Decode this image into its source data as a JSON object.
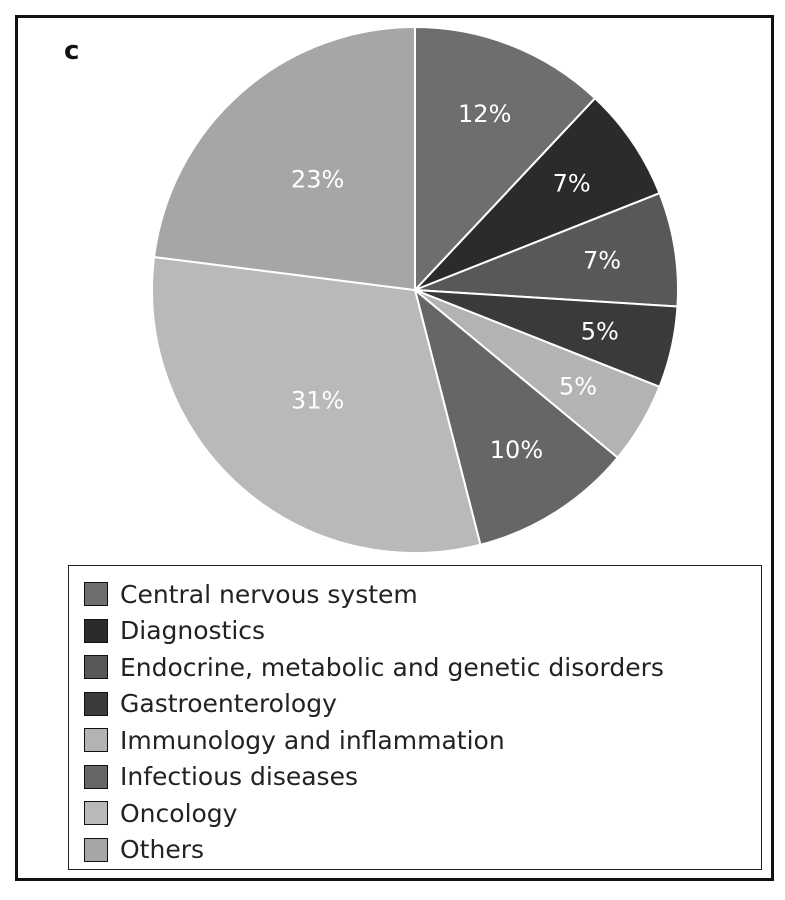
{
  "panel_label": "c",
  "chart_data": {
    "type": "pie",
    "title": "",
    "legend_position": "bottom",
    "slices": [
      {
        "name": "Central nervous system",
        "value": 12,
        "label": "12%",
        "color": "#6e6e6e",
        "label_color": "#ffffff"
      },
      {
        "name": "Diagnostics",
        "value": 7,
        "label": "7%",
        "color": "#2b2b2b",
        "label_color": "#ffffff"
      },
      {
        "name": "Endocrine, metabolic and genetic disorders",
        "value": 7,
        "label": "7%",
        "color": "#585858",
        "label_color": "#ffffff"
      },
      {
        "name": "Gastroenterology",
        "value": 5,
        "label": "5%",
        "color": "#3a3a3a",
        "label_color": "#ffffff"
      },
      {
        "name": "Immunology and inflammation",
        "value": 5,
        "label": "5%",
        "color": "#b3b3b3",
        "label_color": "#ffffff"
      },
      {
        "name": "Infectious diseases",
        "value": 10,
        "label": "10%",
        "color": "#666666",
        "label_color": "#ffffff"
      },
      {
        "name": "Oncology",
        "value": 31,
        "label": "31%",
        "color": "#b9b9b9",
        "label_color": "#ffffff"
      },
      {
        "name": "Others",
        "value": 23,
        "label": "23%",
        "color": "#a6a6a6",
        "label_color": "#ffffff"
      }
    ]
  }
}
